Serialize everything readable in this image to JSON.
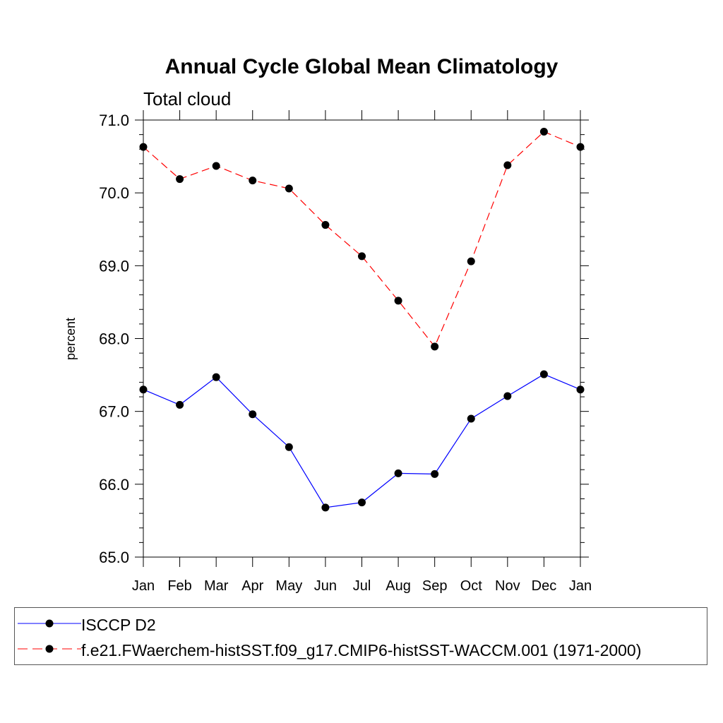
{
  "chart_data": {
    "type": "line",
    "title": "Annual Cycle Global Mean Climatology",
    "subtitle": "Total cloud",
    "xlabel": "",
    "ylabel": "percent",
    "categories": [
      "Jan",
      "Feb",
      "Mar",
      "Apr",
      "May",
      "Jun",
      "Jul",
      "Aug",
      "Sep",
      "Oct",
      "Nov",
      "Dec",
      "Jan"
    ],
    "ylim": [
      65.0,
      71.0
    ],
    "yticks": [
      "65.0",
      "66.0",
      "67.0",
      "68.0",
      "69.0",
      "70.0",
      "71.0"
    ],
    "grid": false,
    "legend_position": "bottom",
    "series": [
      {
        "name": "ISCCP D2",
        "color": "#0000ff",
        "line_style": "solid",
        "marker": "filled-circle",
        "values": [
          67.3,
          67.09,
          67.47,
          66.96,
          66.51,
          65.68,
          65.75,
          66.15,
          66.14,
          66.9,
          67.21,
          67.51,
          67.3
        ]
      },
      {
        "name": "f.e21.FWaerchem-histSST.f09_g17.CMIP6-histSST-WACCM.001 (1971-2000)",
        "color": "#ff0000",
        "line_style": "dashed",
        "marker": "filled-circle",
        "values": [
          70.63,
          70.19,
          70.37,
          70.17,
          70.06,
          69.56,
          69.13,
          68.52,
          67.89,
          69.06,
          70.38,
          70.84,
          70.63
        ]
      }
    ]
  }
}
